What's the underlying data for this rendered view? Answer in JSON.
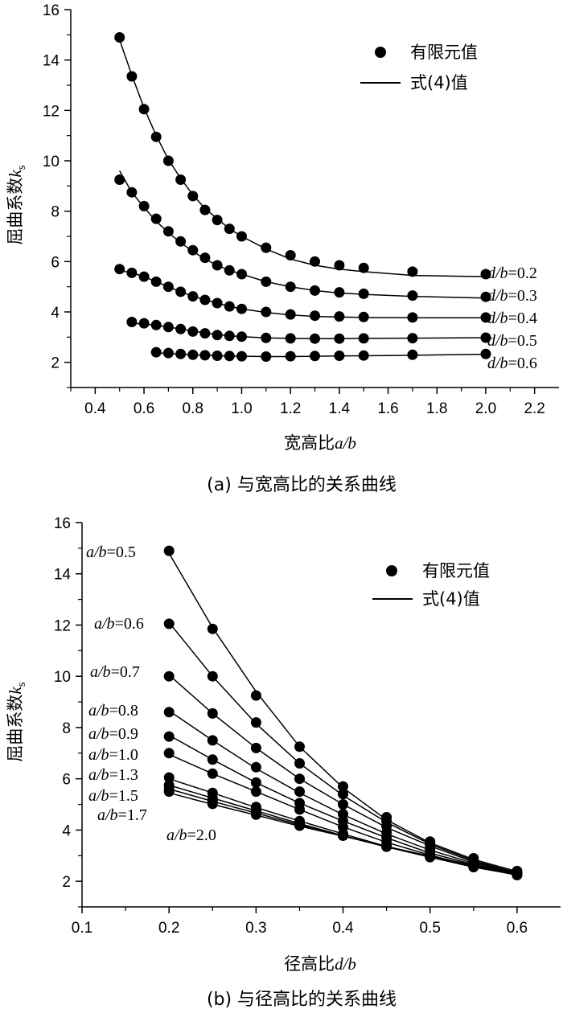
{
  "chart_data": [
    {
      "type": "scatter",
      "caption": "(a) 与宽高比的关系曲线",
      "xlabel": "宽高比",
      "xlabel_var": "a/b",
      "ylabel": "屈曲系数",
      "ylabel_var": "k",
      "ylabel_sub": "s",
      "xlim": [
        0.3,
        2.3
      ],
      "ylim": [
        1,
        16
      ],
      "xticks": [
        "0.4",
        "0.6",
        "0.8",
        "1.0",
        "1.2",
        "1.4",
        "1.6",
        "1.8",
        "2.0",
        "2.2"
      ],
      "xtick_values": [
        0.4,
        0.6,
        0.8,
        1.0,
        1.2,
        1.4,
        1.6,
        1.8,
        2.0,
        2.2
      ],
      "yticks": [
        "2",
        "4",
        "6",
        "8",
        "10",
        "12",
        "14",
        "16"
      ],
      "ytick_values": [
        2,
        4,
        6,
        8,
        10,
        12,
        14,
        16
      ],
      "legend": {
        "position": "top-right",
        "points": "有限元值",
        "line": "式(4)值"
      },
      "series": [
        {
          "param": "d/b",
          "eq": "=0.2",
          "x": [
            0.5,
            0.55,
            0.6,
            0.65,
            0.7,
            0.75,
            0.8,
            0.85,
            0.9,
            0.95,
            1.0,
            1.1,
            1.2,
            1.3,
            1.4,
            1.5,
            1.7,
            2.0
          ],
          "points": [
            14.9,
            13.35,
            12.05,
            10.95,
            10.0,
            9.25,
            8.6,
            8.05,
            7.65,
            7.3,
            7.0,
            6.55,
            6.25,
            6.0,
            5.85,
            5.75,
            5.6,
            5.5
          ],
          "curve": [
            14.8,
            13.4,
            12.1,
            11.0,
            10.05,
            9.3,
            8.65,
            8.1,
            7.7,
            7.3,
            7.0,
            6.5,
            6.1,
            5.85,
            5.7,
            5.6,
            5.45,
            5.4
          ]
        },
        {
          "param": "d/b",
          "eq": "=0.3",
          "x": [
            0.5,
            0.55,
            0.6,
            0.65,
            0.7,
            0.75,
            0.8,
            0.85,
            0.9,
            0.95,
            1.0,
            1.1,
            1.2,
            1.3,
            1.4,
            1.5,
            1.7,
            2.0
          ],
          "points": [
            9.25,
            8.75,
            8.2,
            7.7,
            7.2,
            6.8,
            6.45,
            6.15,
            5.85,
            5.65,
            5.5,
            5.2,
            5.0,
            4.85,
            4.78,
            4.72,
            4.65,
            4.6
          ],
          "curve": [
            9.6,
            8.75,
            8.15,
            7.6,
            7.15,
            6.75,
            6.4,
            6.1,
            5.85,
            5.65,
            5.5,
            5.2,
            5.0,
            4.85,
            4.75,
            4.7,
            4.62,
            4.55
          ]
        },
        {
          "param": "d/b",
          "eq": "=0.4",
          "x": [
            0.5,
            0.55,
            0.6,
            0.65,
            0.7,
            0.75,
            0.8,
            0.85,
            0.9,
            0.95,
            1.0,
            1.1,
            1.2,
            1.3,
            1.4,
            1.5,
            1.7,
            2.0
          ],
          "points": [
            5.7,
            5.55,
            5.4,
            5.2,
            5.0,
            4.8,
            4.62,
            4.48,
            4.35,
            4.22,
            4.12,
            4.0,
            3.9,
            3.85,
            3.82,
            3.8,
            3.78,
            3.78
          ],
          "curve": [
            5.65,
            5.55,
            5.4,
            5.2,
            5.0,
            4.8,
            4.62,
            4.48,
            4.35,
            4.22,
            4.12,
            3.98,
            3.88,
            3.82,
            3.8,
            3.78,
            3.77,
            3.77
          ]
        },
        {
          "param": "d/b",
          "eq": "=0.5",
          "x": [
            0.55,
            0.6,
            0.65,
            0.7,
            0.75,
            0.8,
            0.85,
            0.9,
            0.95,
            1.0,
            1.1,
            1.2,
            1.3,
            1.4,
            1.5,
            1.7,
            2.0
          ],
          "points": [
            3.6,
            3.55,
            3.48,
            3.4,
            3.32,
            3.22,
            3.15,
            3.08,
            3.05,
            3.02,
            2.97,
            2.95,
            2.94,
            2.94,
            2.95,
            2.96,
            2.98
          ],
          "curve": [
            3.55,
            3.52,
            3.47,
            3.4,
            3.32,
            3.24,
            3.17,
            3.1,
            3.06,
            3.02,
            2.97,
            2.95,
            2.94,
            2.94,
            2.95,
            2.96,
            2.98
          ]
        },
        {
          "param": "d/b",
          "eq": "=0.6",
          "x": [
            0.65,
            0.7,
            0.75,
            0.8,
            0.85,
            0.9,
            0.95,
            1.0,
            1.1,
            1.2,
            1.3,
            1.4,
            1.5,
            1.7,
            2.0
          ],
          "points": [
            2.4,
            2.37,
            2.33,
            2.3,
            2.28,
            2.26,
            2.25,
            2.24,
            2.23,
            2.24,
            2.25,
            2.26,
            2.27,
            2.3,
            2.33
          ],
          "curve": [
            2.38,
            2.35,
            2.32,
            2.3,
            2.28,
            2.26,
            2.25,
            2.24,
            2.23,
            2.23,
            2.24,
            2.25,
            2.26,
            2.28,
            2.32
          ]
        }
      ]
    },
    {
      "type": "scatter",
      "caption": "(b) 与径高比的关系曲线",
      "xlabel": "径高比",
      "xlabel_var": "d/b",
      "ylabel": "屈曲系数",
      "ylabel_var": "k",
      "ylabel_sub": "s",
      "xlim": [
        0.1,
        0.65
      ],
      "ylim": [
        1,
        16
      ],
      "xticks": [
        "0.1",
        "0.2",
        "0.3",
        "0.4",
        "0.5",
        "0.6"
      ],
      "xtick_values": [
        0.1,
        0.2,
        0.3,
        0.4,
        0.5,
        0.6
      ],
      "yticks": [
        "2",
        "4",
        "6",
        "8",
        "10",
        "12",
        "14",
        "16"
      ],
      "ytick_values": [
        2,
        4,
        6,
        8,
        10,
        12,
        14,
        16
      ],
      "legend": {
        "position": "top-right",
        "points": "有限元值",
        "line": "式(4)值"
      },
      "x": [
        0.2,
        0.25,
        0.3,
        0.35,
        0.4,
        0.45,
        0.5,
        0.55,
        0.6
      ],
      "series": [
        {
          "param": "a/b",
          "eq": "=0.5",
          "points": [
            14.9,
            11.85,
            9.25,
            7.25,
            5.7,
            4.5,
            3.55,
            2.9,
            2.4
          ],
          "curve": [
            14.8,
            11.9,
            9.4,
            7.25,
            5.65,
            4.4,
            3.5,
            2.85,
            2.38
          ]
        },
        {
          "param": "a/b",
          "eq": "=0.6",
          "points": [
            12.05,
            10.0,
            8.2,
            6.6,
            5.4,
            4.35,
            3.45,
            2.8,
            2.35
          ],
          "curve": [
            12.1,
            10.0,
            8.15,
            6.6,
            5.35,
            4.3,
            3.45,
            2.8,
            2.33
          ]
        },
        {
          "param": "a/b",
          "eq": "=0.7",
          "points": [
            10.0,
            8.55,
            7.2,
            6.0,
            5.0,
            4.15,
            3.4,
            2.78,
            2.33
          ],
          "curve": [
            10.05,
            8.55,
            7.2,
            6.0,
            5.0,
            4.1,
            3.38,
            2.75,
            2.32
          ]
        },
        {
          "param": "a/b",
          "eq": "=0.8",
          "points": [
            8.6,
            7.5,
            6.45,
            5.5,
            4.62,
            3.9,
            3.25,
            2.72,
            2.3
          ],
          "curve": [
            8.65,
            7.5,
            6.4,
            5.45,
            4.6,
            3.85,
            3.22,
            2.7,
            2.3
          ]
        },
        {
          "param": "a/b",
          "eq": "=0.9",
          "points": [
            7.65,
            6.75,
            5.85,
            5.05,
            4.35,
            3.72,
            3.12,
            2.65,
            2.26
          ],
          "curve": [
            7.7,
            6.75,
            5.85,
            5.05,
            4.35,
            3.7,
            3.1,
            2.65,
            2.26
          ]
        },
        {
          "param": "a/b",
          "eq": "=1.0",
          "points": [
            7.0,
            6.2,
            5.5,
            4.8,
            4.12,
            3.55,
            3.02,
            2.6,
            2.24
          ],
          "curve": [
            6.95,
            6.2,
            5.5,
            4.8,
            4.12,
            3.52,
            3.02,
            2.58,
            2.24
          ]
        },
        {
          "param": "a/b",
          "eq": "=1.3",
          "points": [
            6.05,
            5.45,
            4.9,
            4.35,
            3.85,
            3.38,
            2.94,
            2.55,
            2.25
          ],
          "curve": [
            6.0,
            5.45,
            4.88,
            4.35,
            3.85,
            3.36,
            2.94,
            2.55,
            2.25
          ]
        },
        {
          "param": "a/b",
          "eq": "=1.5",
          "points": [
            5.75,
            5.25,
            4.75,
            4.25,
            3.8,
            3.35,
            2.95,
            2.58,
            2.27
          ],
          "curve": [
            5.75,
            5.25,
            4.75,
            4.25,
            3.78,
            3.34,
            2.94,
            2.57,
            2.27
          ]
        },
        {
          "param": "a/b",
          "eq": "=1.7",
          "points": [
            5.6,
            5.12,
            4.68,
            4.2,
            3.78,
            3.35,
            2.96,
            2.6,
            2.3
          ],
          "curve": [
            5.6,
            5.12,
            4.66,
            4.2,
            3.77,
            3.34,
            2.95,
            2.6,
            2.3
          ]
        },
        {
          "param": "a/b",
          "eq": "=2.0",
          "points": [
            5.5,
            5.02,
            4.6,
            4.17,
            3.78,
            3.37,
            2.98,
            2.63,
            2.33
          ],
          "curve": [
            5.45,
            5.0,
            4.58,
            4.15,
            3.76,
            3.36,
            2.98,
            2.63,
            2.32
          ]
        }
      ]
    }
  ]
}
